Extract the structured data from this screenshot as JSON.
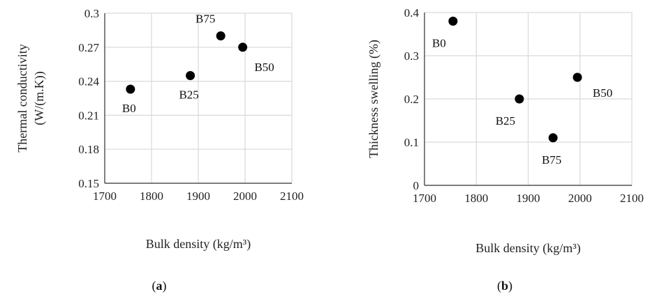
{
  "chart_data": [
    {
      "type": "scatter",
      "xlabel": "Bulk density (kg/m³)",
      "ylabel_lines": [
        "Thermal conductivity",
        "(W/(m.K))"
      ],
      "xlim": [
        1700,
        2100
      ],
      "ylim": [
        0.15,
        0.3
      ],
      "xticks": [
        "1700",
        "1800",
        "1900",
        "2000",
        "2100"
      ],
      "yticks": [
        "0.15",
        "0.18",
        "0.21",
        "0.24",
        "0.27",
        "0.3"
      ],
      "grid": true,
      "points": [
        {
          "label": "B0",
          "x": 1755,
          "y": 0.233,
          "label_pos": "below"
        },
        {
          "label": "B25",
          "x": 1883,
          "y": 0.245,
          "label_pos": "below"
        },
        {
          "label": "B75",
          "x": 1948,
          "y": 0.28,
          "label_pos": "above-left"
        },
        {
          "label": "B50",
          "x": 1995,
          "y": 0.27,
          "label_pos": "below-right"
        }
      ],
      "caption": {
        "open": "(",
        "letter": "a",
        "close": ")"
      }
    },
    {
      "type": "scatter",
      "xlabel": "Bulk density (kg/m³)",
      "ylabel_lines": [
        "Thickness swelling (%)"
      ],
      "xlim": [
        1700,
        2100
      ],
      "ylim": [
        0,
        0.4
      ],
      "xticks": [
        "1700",
        "1800",
        "1900",
        "2000",
        "2100"
      ],
      "yticks": [
        "0",
        "0.1",
        "0.2",
        "0.3",
        "0.4"
      ],
      "grid": true,
      "points": [
        {
          "label": "B0",
          "x": 1755,
          "y": 0.38,
          "label_pos": "below-left"
        },
        {
          "label": "B25",
          "x": 1883,
          "y": 0.2,
          "label_pos": "below-left"
        },
        {
          "label": "B75",
          "x": 1948,
          "y": 0.11,
          "label_pos": "below"
        },
        {
          "label": "B50",
          "x": 1995,
          "y": 0.25,
          "label_pos": "below-right"
        }
      ],
      "caption": {
        "open": "(",
        "letter": "b",
        "close": ")"
      }
    }
  ]
}
